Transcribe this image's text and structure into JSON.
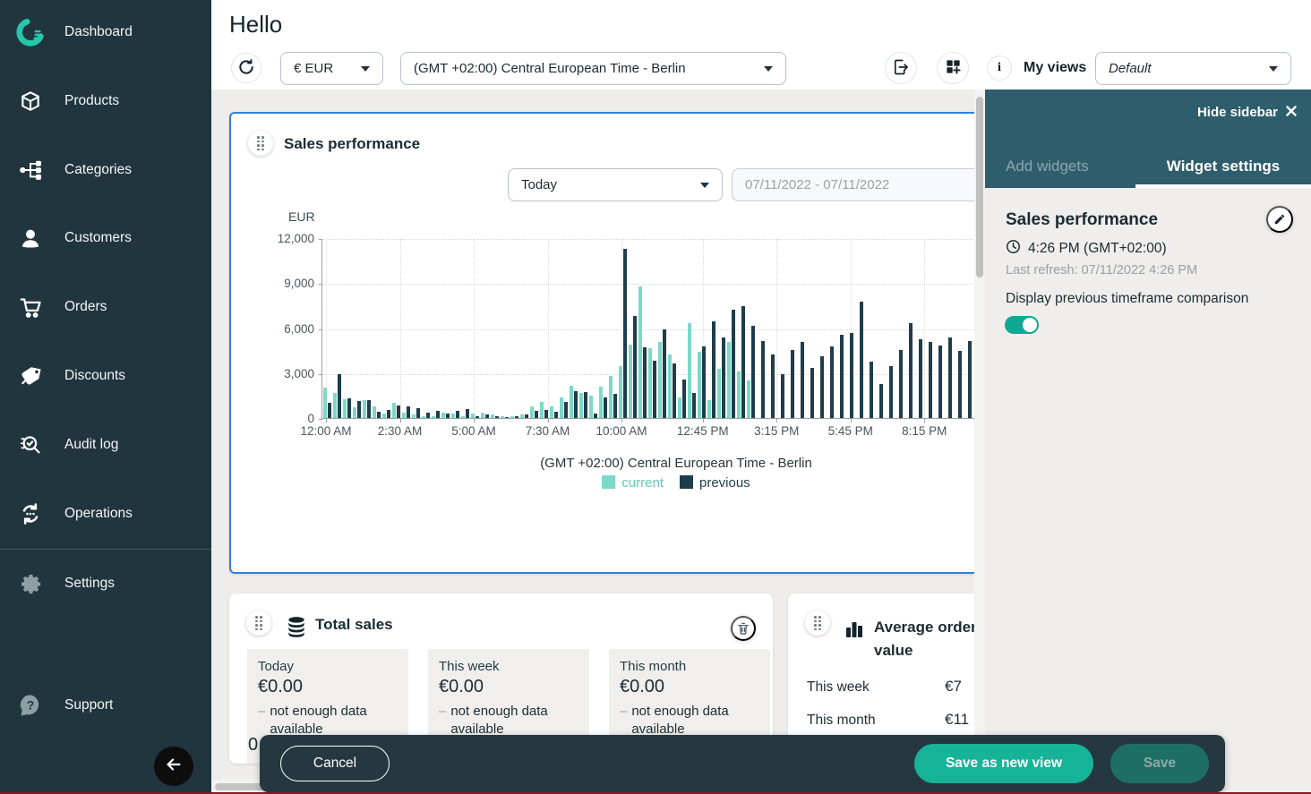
{
  "colors": {
    "sidebar_bg": "#20353d",
    "brand_teal": "#26c6a9",
    "panel_header": "#2e5d6c",
    "action_bar": "#25383f",
    "primary_button": "#17b399",
    "disabled_button": "#1d6f66",
    "toggle_on": "#0fa893",
    "current_bar": "#7cd9c8",
    "previous_bar": "#1f3d4a",
    "selected_border": "#2f80db",
    "content_bg": "#eeedeb"
  },
  "sidebar": {
    "items": [
      {
        "label": "Dashboard",
        "icon": "gauge-logo-icon"
      },
      {
        "label": "Products",
        "icon": "box-icon"
      },
      {
        "label": "Categories",
        "icon": "hierarchy-icon"
      },
      {
        "label": "Customers",
        "icon": "person-icon"
      },
      {
        "label": "Orders",
        "icon": "cart-icon"
      },
      {
        "label": "Discounts",
        "icon": "tag-icon"
      },
      {
        "label": "Audit log",
        "icon": "magnifier-check-icon"
      },
      {
        "label": "Operations",
        "icon": "sync-arrows-icon"
      },
      {
        "label": "Settings",
        "icon": "gear-icon"
      },
      {
        "label": "Support",
        "icon": "question-bubble-icon"
      }
    ]
  },
  "header": {
    "title": "Hello",
    "currency_value": "€ EUR",
    "timezone_value": "(GMT +02:00) Central European Time - Berlin",
    "my_views_label": "My views",
    "view_value": "Default"
  },
  "sales_widget": {
    "title": "Sales performance",
    "period_value": "Today",
    "date_range_value": "07/11/2022 - 07/11/2022"
  },
  "chart_data": {
    "type": "bar",
    "title": "Sales performance",
    "ylabel": "EUR",
    "ylim": [
      0,
      12000
    ],
    "yticks": [
      "12,000",
      "9,000",
      "6,000",
      "3,000",
      "0"
    ],
    "x_start": "12:00 AM",
    "x_interval_minutes": 20,
    "xticks": [
      "12:00 AM",
      "2:30 AM",
      "5:00 AM",
      "7:30 AM",
      "10:00 AM",
      "12:45 PM",
      "3:15 PM",
      "5:45 PM",
      "8:15 PM"
    ],
    "xtick_hours": [
      0,
      2.5,
      5,
      7.5,
      10,
      12.75,
      15.25,
      17.75,
      20.25
    ],
    "grid": true,
    "legend_position": "bottom",
    "caption": "(GMT +02:00) Central European Time - Berlin",
    "series": [
      {
        "name": "current",
        "color": "#7cd9c8",
        "values": [
          2050,
          1700,
          1250,
          700,
          1200,
          800,
          300,
          1000,
          350,
          250,
          150,
          100,
          350,
          300,
          100,
          300,
          350,
          250,
          100,
          150,
          250,
          800,
          1050,
          750,
          1350,
          2150,
          1650,
          1500,
          2100,
          2800,
          3450,
          4900,
          8750,
          4650,
          5100,
          4250,
          1350,
          6350,
          4400,
          1200,
          3300,
          5100,
          3100,
          2500,
          null,
          null,
          null,
          null,
          null,
          null,
          null,
          null,
          null,
          null,
          null,
          null,
          null,
          null,
          null,
          null,
          null,
          null,
          null,
          null,
          null,
          null,
          null,
          null,
          null,
          null,
          null,
          null
        ]
      },
      {
        "name": "previous",
        "color": "#1f3d4a",
        "values": [
          1000,
          2900,
          1300,
          1150,
          1200,
          400,
          550,
          850,
          800,
          650,
          350,
          450,
          300,
          500,
          600,
          150,
          250,
          100,
          50,
          150,
          250,
          450,
          550,
          400,
          1100,
          1800,
          1750,
          300,
          1350,
          1600,
          11300,
          6800,
          4700,
          3800,
          5900,
          3650,
          2550,
          1700,
          4750,
          6450,
          5350,
          7250,
          7450,
          6150,
          5150,
          4250,
          2950,
          4550,
          5050,
          3350,
          4150,
          4750,
          5550,
          5650,
          7750,
          3750,
          2250,
          3450,
          4550,
          6350,
          5250,
          5050,
          4850,
          5350,
          4450,
          5150,
          4050,
          4950,
          4350,
          3350,
          5450,
          4850
        ]
      }
    ]
  },
  "totals_widget": {
    "title": "Total sales",
    "note_dash": "–",
    "stats": [
      {
        "period": "Today",
        "value": "€0.00",
        "note": "not enough data available"
      },
      {
        "period": "This week",
        "value": "€0.00",
        "note": "not enough data available"
      },
      {
        "period": "This month",
        "value": "€0.00",
        "note": "not enough data available"
      }
    ],
    "partial_value": "0"
  },
  "aov_widget": {
    "title": "Average order value",
    "rows": [
      {
        "label": "This week",
        "value": "€7"
      },
      {
        "label": "This month",
        "value": "€11"
      }
    ]
  },
  "panel": {
    "hide_label": "Hide sidebar",
    "tabs": [
      {
        "label": "Add widgets",
        "active": false
      },
      {
        "label": "Widget settings",
        "active": true
      }
    ],
    "widget": {
      "title": "Sales performance",
      "time": "4:26 PM (GMT+02:00)",
      "last_refresh": "Last refresh: 07/11/2022 4:26 PM",
      "toggle_label": "Display previous timeframe comparison",
      "toggle_on": true
    }
  },
  "footer": {
    "cancel_label": "Cancel",
    "save_new_label": "Save as new view",
    "save_label": "Save"
  }
}
